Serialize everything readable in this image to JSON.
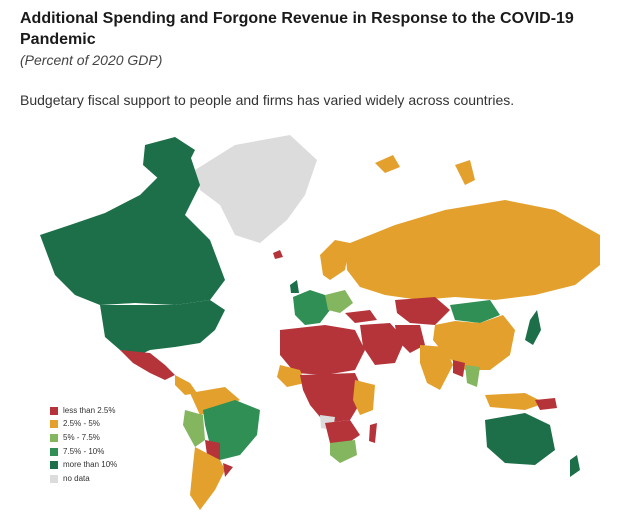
{
  "header": {
    "title": "Additional Spending and Forgone Revenue in Response to the COVID-19 Pandemic",
    "subtitle": "(Percent of 2020 GDP)",
    "lede": "Budgetary fiscal support to people and firms has varied widely across countries."
  },
  "legend": {
    "items": [
      {
        "label": "less than 2.5%",
        "color": "#b5343a"
      },
      {
        "label": "2.5% - 5%",
        "color": "#e3a02c"
      },
      {
        "label": "5% - 7.5%",
        "color": "#84b55f"
      },
      {
        "label": "7.5% - 10%",
        "color": "#2f8f55"
      },
      {
        "label": "more than 10%",
        "color": "#1c6f48"
      },
      {
        "label": "no data",
        "color": "#dcdcdc"
      }
    ]
  },
  "colors": {
    "less_than_2_5": "#b5343a",
    "2_5_to_5": "#e3a02c",
    "5_to_7_5": "#84b55f",
    "7_5_to_10": "#2f8f55",
    "more_than_10": "#1c6f48",
    "no_data": "#dcdcdc"
  }
}
